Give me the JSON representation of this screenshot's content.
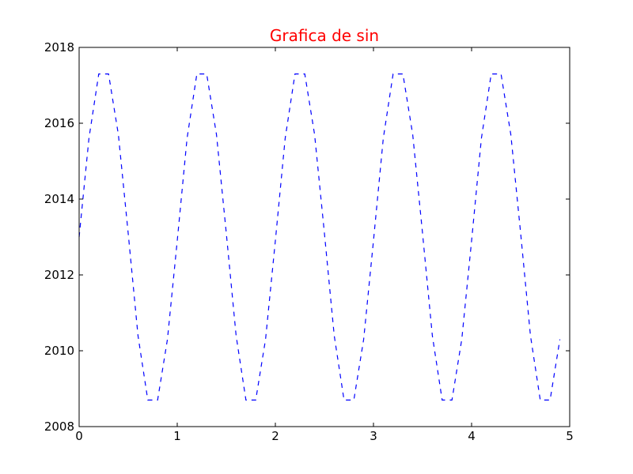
{
  "chart_data": {
    "type": "line",
    "title": "Grafica de sin",
    "title_color": "#ff0000",
    "xlabel": "",
    "ylabel": "",
    "xlim": [
      0,
      5
    ],
    "ylim": [
      2008,
      2018
    ],
    "x_ticks": [
      0,
      1,
      2,
      3,
      4,
      5
    ],
    "y_ticks": [
      2008,
      2010,
      2012,
      2014,
      2016,
      2018
    ],
    "x_tick_labels": [
      "0",
      "1",
      "2",
      "3",
      "4",
      "5"
    ],
    "y_tick_labels": [
      "2008",
      "2010",
      "2012",
      "2014",
      "2016",
      "2018"
    ],
    "grid": false,
    "legend": "none",
    "series": [
      {
        "color": "#0000ff",
        "line_style": "dashed",
        "x": [
          0.0,
          0.1,
          0.2,
          0.3,
          0.4,
          0.5,
          0.6,
          0.7,
          0.8,
          0.9,
          1.0,
          1.1,
          1.2,
          1.3,
          1.4,
          1.5,
          1.6,
          1.7,
          1.8,
          1.9,
          2.0,
          2.1,
          2.2,
          2.3,
          2.4,
          2.5,
          2.6,
          2.7,
          2.8,
          2.9,
          3.0,
          3.1,
          3.2,
          3.3,
          3.4,
          3.5,
          3.6,
          3.7,
          3.8,
          3.9,
          4.0,
          4.1,
          4.2,
          4.3,
          4.4,
          4.5,
          4.6,
          4.7,
          4.8,
          4.9
        ],
        "y": [
          2013.0,
          2015.6,
          2017.3,
          2017.3,
          2015.7,
          2013.1,
          2010.4,
          2008.7,
          2008.7,
          2010.3,
          2012.9,
          2015.6,
          2017.3,
          2017.3,
          2015.7,
          2013.1,
          2010.4,
          2008.7,
          2008.7,
          2010.3,
          2012.9,
          2015.6,
          2017.3,
          2017.3,
          2015.7,
          2013.1,
          2010.4,
          2008.7,
          2008.7,
          2010.3,
          2012.9,
          2015.6,
          2017.3,
          2017.3,
          2015.7,
          2013.1,
          2010.4,
          2008.7,
          2008.7,
          2010.3,
          2012.9,
          2015.6,
          2017.3,
          2017.3,
          2015.7,
          2013.1,
          2010.4,
          2008.7,
          2008.7,
          2010.3
        ]
      }
    ]
  }
}
